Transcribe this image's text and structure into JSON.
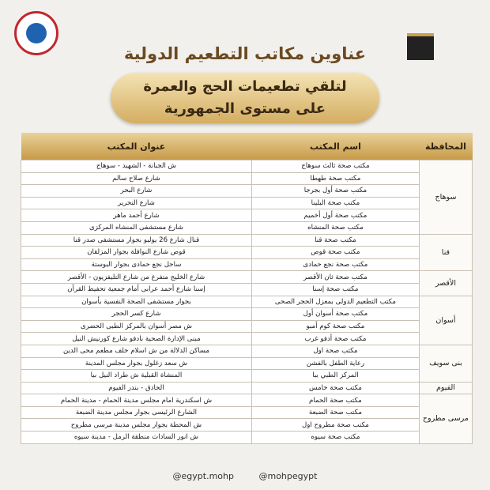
{
  "header": {
    "title": "عناوين مكاتب التطعيم الدولية",
    "subtitle": [
      "لتلقي تطعيمات الحج والعمرة",
      "على مستوى الجمهورية"
    ]
  },
  "table": {
    "columns": [
      "المحافظة",
      "اسم المكتب",
      "عنوان المكتب"
    ],
    "groups": [
      {
        "governorate": "سوهاج",
        "rows": [
          [
            "مكتب صحة ثالث سوهاج",
            "ش الجبانة - الشهيد - سوهاج"
          ],
          [
            "مكتب صحة طهطا",
            "شارع صلاح سالم"
          ],
          [
            "مكتب صحة أول بجرجا",
            "شارع البحر"
          ],
          [
            "مكتب صحة البلينا",
            "شارع التحرير"
          ],
          [
            "مكتب صحة أول أخميم",
            "شارع أحمد ماهر"
          ],
          [
            "مكتب صحة المنشاه",
            "شارع مستشفى المنشاه المركزى"
          ]
        ]
      },
      {
        "governorate": "قنا",
        "rows": [
          [
            "مكتب صحة قنا",
            "قنال شارع 26 يوليو بجوار مستشفى صدر قنا"
          ],
          [
            "مكتب صحة قوص",
            "قوص شارع النوافلة بجوار المزلقان"
          ],
          [
            "مكتب صحة نجع حمادى",
            "ساحل نجع حمادى بجوار البوستة"
          ]
        ]
      },
      {
        "governorate": "الأقصر",
        "rows": [
          [
            "مكتب صحة ثان الأقصر",
            "شارع الخليج متفرع من شارع التليفزيون - الأقصر"
          ],
          [
            "مكتب صحة إسنا",
            "إسنا شارع أحمد عرابى أمام جمعية تحفيظ القرآن"
          ]
        ]
      },
      {
        "governorate": "أسوان",
        "rows": [
          [
            "مكتب التطعيم الدولى بمعزل الحجر الصحى",
            "بجوار مستشفى الصحة النفسية بأسوان"
          ],
          [
            "مكتب صحة أسوان أول",
            "شارع كسر الحجر"
          ],
          [
            "مكتب صحة كوم أمبو",
            "ش مصر أسوان بالمركز الطبى الحضرى"
          ],
          [
            "مكتب صحة أدفو غرب",
            "مبنى الإدارة الصحية بادفو شارع كورنيش النيل"
          ]
        ]
      },
      {
        "governorate": "بنى سويف",
        "rows": [
          [
            "مكتب صحة اول",
            "مساكن الدلالة من ش اسلام خلف مطعم محى الدين"
          ],
          [
            "رعاية الطفل بالفشن",
            "ش سعد زغلول بجوار مجلس المدينة"
          ],
          [
            "المركز الطبي ببا",
            "المنشاة القبلية ش طراد النيل ببا"
          ]
        ]
      },
      {
        "governorate": "الفيوم",
        "rows": [
          [
            "مكتب صحة خامس",
            "الحادق - بندر الفيوم"
          ]
        ]
      },
      {
        "governorate": "مرسى مطروح",
        "rows": [
          [
            "مكتب صحة الحمام",
            "ش اسكندرية امام مجلس مدينة الحمام - مدينة الحمام"
          ],
          [
            "مكتب صحة الضبعة",
            "الشارع الرئيسى بجوار مجلس مدينة الضبعة"
          ],
          [
            "مكتب صحة مطروح اول",
            "ش المحطة بجوار مجلس مدينة مرسى مطروح"
          ],
          [
            "مكتب صحة سيوه",
            "ش انور السادات منطقة الرمل - مدينة سيوه"
          ]
        ]
      }
    ]
  },
  "footer": [
    "@egypt.mohp",
    "@mohpegypt"
  ]
}
